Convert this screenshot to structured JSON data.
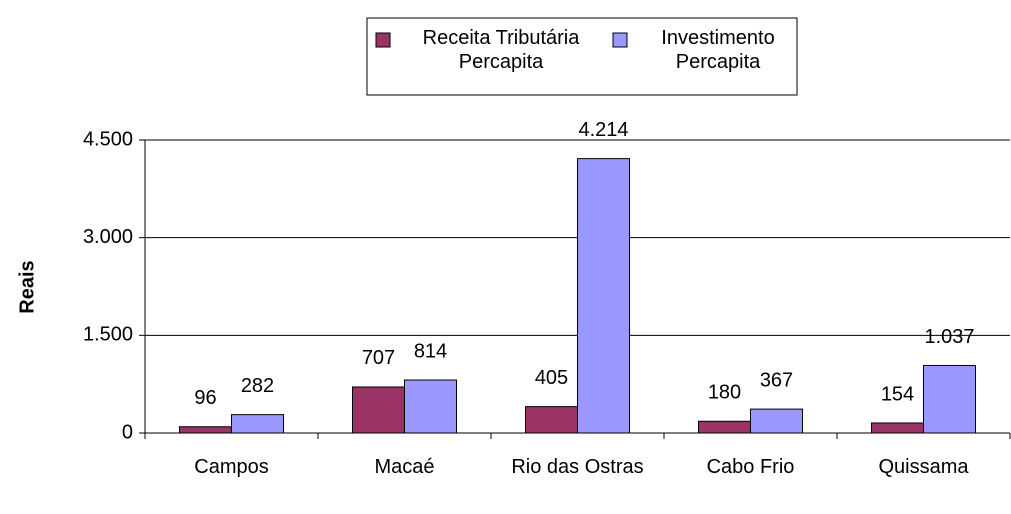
{
  "chart_data": {
    "type": "bar",
    "categories": [
      "Campos",
      "Macaé",
      "Rio das Ostras",
      "Cabo Frio",
      "Quissama"
    ],
    "series": [
      {
        "name": "Receita Tributária Percapita",
        "color": "#993366",
        "values": [
          96,
          707,
          405,
          180,
          154
        ]
      },
      {
        "name": "Investimento Percapita",
        "color": "#9999ff",
        "values": [
          282,
          814,
          4214,
          367,
          1037
        ],
        "value_labels": [
          "282",
          "814",
          "4.214",
          "367",
          "1.037"
        ]
      }
    ],
    "y_label": "Reais",
    "ylim": [
      0,
      4500
    ],
    "yticks": [
      0,
      {
        "value": 1500,
        "label": "1.500"
      },
      {
        "value": 3000,
        "label": "3.000"
      },
      {
        "value": 4500,
        "label": "4.500"
      }
    ],
    "grid": true,
    "legend": "top"
  }
}
